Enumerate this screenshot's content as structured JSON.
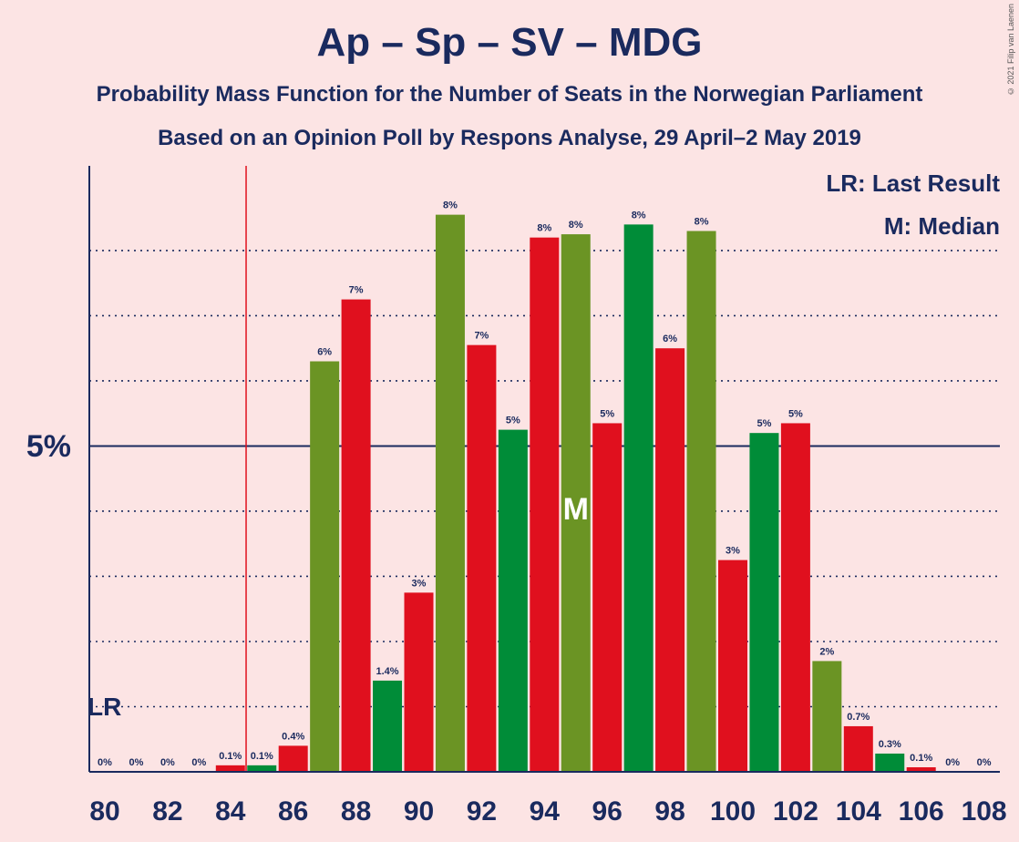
{
  "title": "Ap – Sp – SV – MDG",
  "subtitle1": "Probability Mass Function for the Number of Seats in the Norwegian Parliament",
  "subtitle2": "Based on an Opinion Poll by Respons Analyse, 29 April–2 May 2019",
  "copyright": "© 2021 Filip van Laenen",
  "legend": {
    "lr": "LR: Last Result",
    "m": "M: Median"
  },
  "lr_marker": "LR",
  "median_marker": "M",
  "y_axis_label": "5%",
  "colors": {
    "background": "#fce4e4",
    "text": "#1a2a5e",
    "red": "#e0101e",
    "olive": "#6b9424",
    "green": "#008c38",
    "lr_line": "#e0101e"
  },
  "chart_data": {
    "type": "bar",
    "x_ticks": [
      "80",
      "82",
      "84",
      "86",
      "88",
      "90",
      "92",
      "94",
      "96",
      "98",
      "100",
      "102",
      "104",
      "106",
      "108"
    ],
    "seats": [
      80,
      81,
      82,
      83,
      84,
      85,
      86,
      87,
      88,
      89,
      90,
      91,
      92,
      93,
      94,
      95,
      96,
      97,
      98,
      99,
      100,
      101,
      102,
      103,
      104,
      105,
      106,
      107,
      108
    ],
    "values": [
      0,
      0,
      0,
      0,
      0.1,
      0.1,
      0.4,
      6.3,
      7.25,
      1.4,
      2.75,
      8.55,
      6.55,
      5.25,
      8.2,
      8.25,
      5.35,
      8.4,
      6.5,
      8.3,
      3.25,
      5.2,
      5.35,
      1.7,
      0.7,
      0.28,
      0.07,
      0,
      0
    ],
    "labels": [
      "0%",
      "0%",
      "0%",
      "0%",
      "0.1%",
      "0.1%",
      "0.4%",
      "6%",
      "7%",
      "1.4%",
      "3%",
      "8%",
      "7%",
      "5%",
      "8%",
      "8%",
      "5%",
      "8%",
      "6%",
      "8%",
      "3%",
      "5%",
      "5%",
      "2%",
      "0.7%",
      "0.3%",
      "0.1%",
      "0%",
      "0%"
    ],
    "bar_colors": [
      "red",
      "red",
      "red",
      "red",
      "red",
      "green",
      "red",
      "olive",
      "red",
      "green",
      "red",
      "olive",
      "red",
      "green",
      "red",
      "olive",
      "red",
      "green",
      "red",
      "olive",
      "red",
      "green",
      "red",
      "olive",
      "red",
      "green",
      "red",
      "red",
      "red"
    ],
    "ylim": [
      0,
      9.3
    ],
    "gridlines": [
      1,
      2,
      3,
      4,
      6,
      7,
      8
    ],
    "solid_line": 5,
    "last_result": 85,
    "median": 95
  }
}
